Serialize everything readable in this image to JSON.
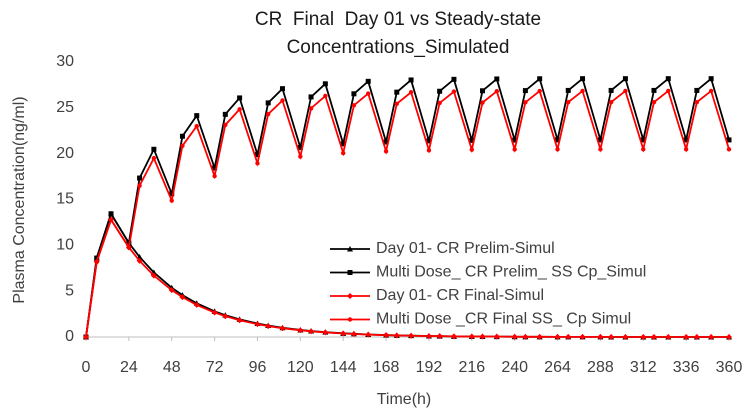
{
  "chart_data": {
    "type": "line",
    "title": [
      "CR  Final  Day 01 vs Steady-state",
      "Concentrations_Simulated"
    ],
    "xlabel": "Time(h)",
    "ylabel": "Plasma Concentration(ng/ml)",
    "x": [
      0,
      6,
      14,
      24,
      30,
      38,
      48,
      54,
      62,
      72,
      78,
      86,
      96,
      102,
      110,
      120,
      126,
      134,
      144,
      150,
      158,
      168,
      174,
      182,
      192,
      198,
      206,
      216,
      222,
      230,
      240,
      246,
      254,
      264,
      270,
      278,
      288,
      294,
      302,
      312,
      318,
      326,
      336,
      342,
      350,
      360
    ],
    "xlim": [
      0,
      360
    ],
    "xticks": [
      0,
      24,
      48,
      72,
      96,
      120,
      144,
      168,
      192,
      216,
      240,
      264,
      288,
      312,
      336,
      360
    ],
    "ylim": [
      0,
      30
    ],
    "yticks": [
      0,
      5,
      10,
      15,
      20,
      25,
      30
    ],
    "grid": false,
    "legend": "right",
    "series": [
      {
        "name": "Day 01- CR Prelim-Simul",
        "color": "#000000",
        "marker": "triangle",
        "values": [
          0,
          8.61,
          13.44,
          10.26,
          8.73,
          7.04,
          5.37,
          4.57,
          3.68,
          2.8,
          2.38,
          1.92,
          1.47,
          1.25,
          1.01,
          0.77,
          0.65,
          0.53,
          0.4,
          0.35,
          0.27,
          0.21,
          0.18,
          0.15,
          0.11,
          0.09,
          0.07,
          0.05,
          0.05,
          0.04,
          0.03,
          0.02,
          0.02,
          0.01,
          0.01,
          0.01,
          0.01,
          0,
          0,
          0,
          0,
          0,
          0,
          0,
          0,
          0
        ]
      },
      {
        "name": "Multi Dose_ CR Prelim_ SS Cp_Simul",
        "color": "#000000",
        "marker": "square",
        "values": [
          0,
          8.61,
          13.44,
          10.26,
          17.34,
          20.48,
          15.62,
          21.9,
          24.15,
          18.44,
          24.29,
          26.08,
          19.9,
          25.54,
          27.09,
          20.67,
          26.19,
          27.62,
          21.07,
          26.53,
          27.89,
          21.27,
          26.71,
          28.04,
          21.39,
          26.81,
          28.11,
          21.45,
          26.86,
          28.15,
          21.48,
          26.88,
          28.17,
          21.5,
          26.9,
          28.18,
          21.5,
          26.9,
          28.18,
          21.5,
          26.9,
          28.18,
          21.5,
          26.9,
          28.18,
          21.5
        ]
      },
      {
        "name": "Day 01- CR Final-Simul",
        "color": "#ff0000",
        "marker": "diamond",
        "values": [
          0,
          8.2,
          12.8,
          9.77,
          8.31,
          6.7,
          5.11,
          4.35,
          3.5,
          2.67,
          2.27,
          1.83,
          1.4,
          1.19,
          0.96,
          0.73,
          0.62,
          0.5,
          0.38,
          0.33,
          0.26,
          0.2,
          0.17,
          0.14,
          0.1,
          0.09,
          0.07,
          0.05,
          0.05,
          0.04,
          0.03,
          0.02,
          0.02,
          0.01,
          0.01,
          0.01,
          0.01,
          0,
          0,
          0,
          0,
          0,
          0,
          0,
          0,
          0
        ]
      },
      {
        "name": "Multi Dose _CR Final SS_ Cp Simul",
        "color": "#ff0000",
        "marker": "dot",
        "values": [
          0,
          8.2,
          12.8,
          9.77,
          16.51,
          19.5,
          14.88,
          20.86,
          23,
          17.56,
          23.13,
          24.84,
          18.95,
          24.32,
          25.8,
          19.69,
          24.94,
          26.3,
          20.07,
          25.27,
          26.56,
          20.26,
          25.44,
          26.7,
          20.37,
          25.53,
          26.77,
          20.43,
          25.58,
          26.81,
          20.46,
          25.6,
          26.83,
          20.48,
          25.62,
          26.84,
          20.48,
          25.62,
          26.84,
          20.48,
          25.62,
          26.84,
          20.48,
          25.62,
          26.84,
          20.48
        ]
      }
    ]
  }
}
